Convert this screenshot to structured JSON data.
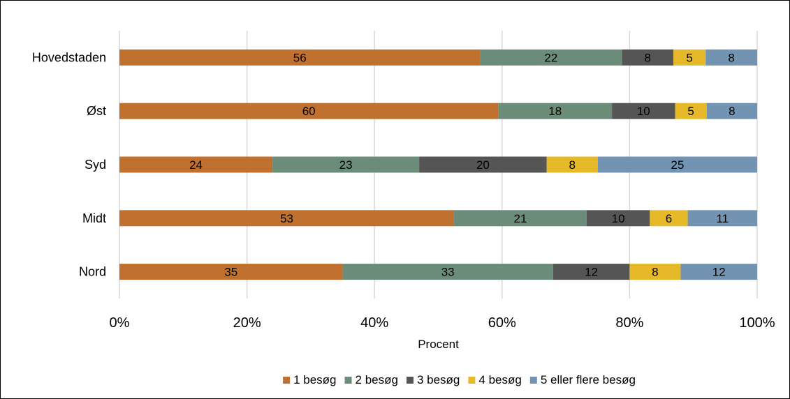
{
  "chart_data": {
    "type": "bar",
    "orientation": "horizontal",
    "stacked": "percent",
    "categories": [
      "Hovedstaden",
      "Øst",
      "Syd",
      "Midt",
      "Nord"
    ],
    "series": [
      {
        "name": "1 besøg",
        "color": "#c0702f",
        "values": [
          56,
          60,
          24,
          53,
          35
        ]
      },
      {
        "name": "2 besøg",
        "color": "#6b8c78",
        "values": [
          22,
          18,
          23,
          21,
          33
        ]
      },
      {
        "name": "3 besøg",
        "color": "#555555",
        "values": [
          8,
          10,
          20,
          10,
          12
        ]
      },
      {
        "name": "4 besøg",
        "color": "#e5b928",
        "values": [
          5,
          5,
          8,
          6,
          8
        ]
      },
      {
        "name": "5 eller flere besøg",
        "color": "#7294b2",
        "values": [
          8,
          8,
          25,
          11,
          12
        ]
      }
    ],
    "xticks": [
      "0%",
      "20%",
      "40%",
      "60%",
      "80%",
      "100%"
    ],
    "xlabel": "Procent",
    "ylabel": "",
    "xlim": [
      0,
      100
    ],
    "grid": "vertical",
    "legend": "bottom"
  }
}
